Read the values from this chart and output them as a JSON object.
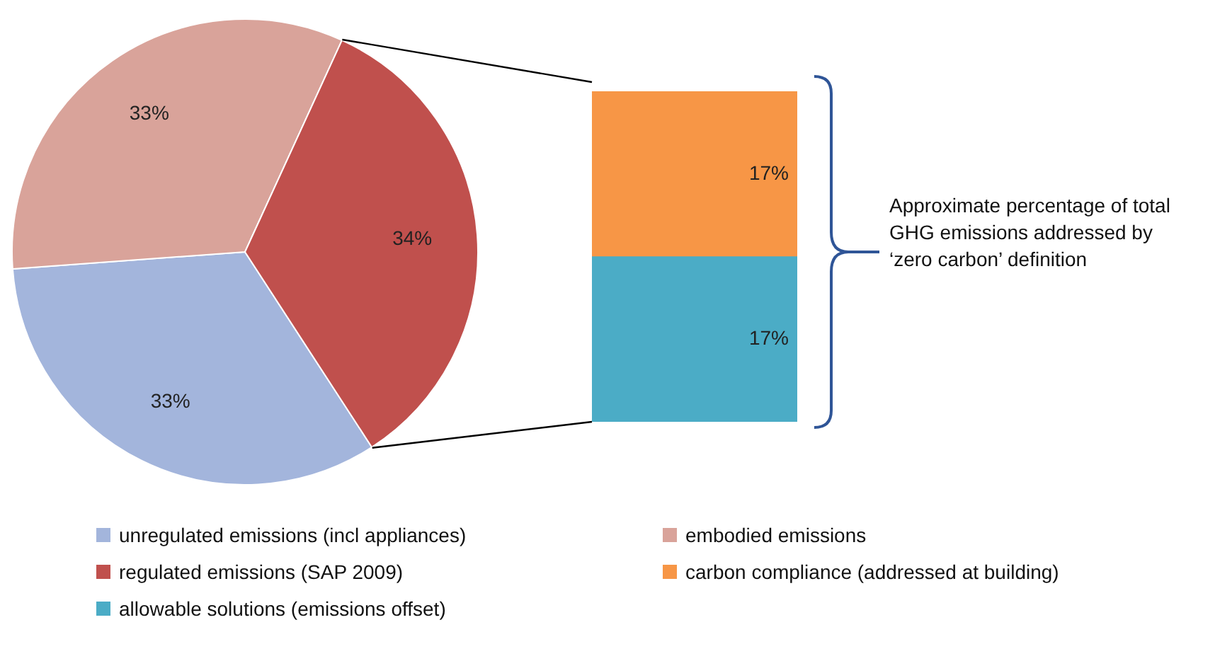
{
  "chart_data": [
    {
      "type": "pie",
      "categories": [
        "unregulated emissions (incl appliances)",
        "embodied emissions",
        "regulated emissions (SAP 2009)"
      ],
      "values": [
        33,
        33,
        34
      ],
      "colors": [
        "#a3b5dc",
        "#d9a39a",
        "#c0504d"
      ],
      "value_labels": [
        "33%",
        "33%",
        "34%"
      ],
      "legend": "bottom"
    },
    {
      "type": "bar",
      "categories": [
        null
      ],
      "stacked": true,
      "legend": "bottom",
      "series": [
        {
          "name": "allowable solutions (emissions offset)",
          "color": "#4bacc6",
          "values": [
            17
          ],
          "value_labels": [
            "17%"
          ]
        },
        {
          "name": "carbon compliance (addressed at building)",
          "color": "#f79646",
          "values": [
            17
          ],
          "value_labels": [
            "17%"
          ]
        }
      ],
      "annotations": [
        "Approximate percentage of total GHG emissions addressed by ‘zero carbon’ definition"
      ]
    }
  ]
}
